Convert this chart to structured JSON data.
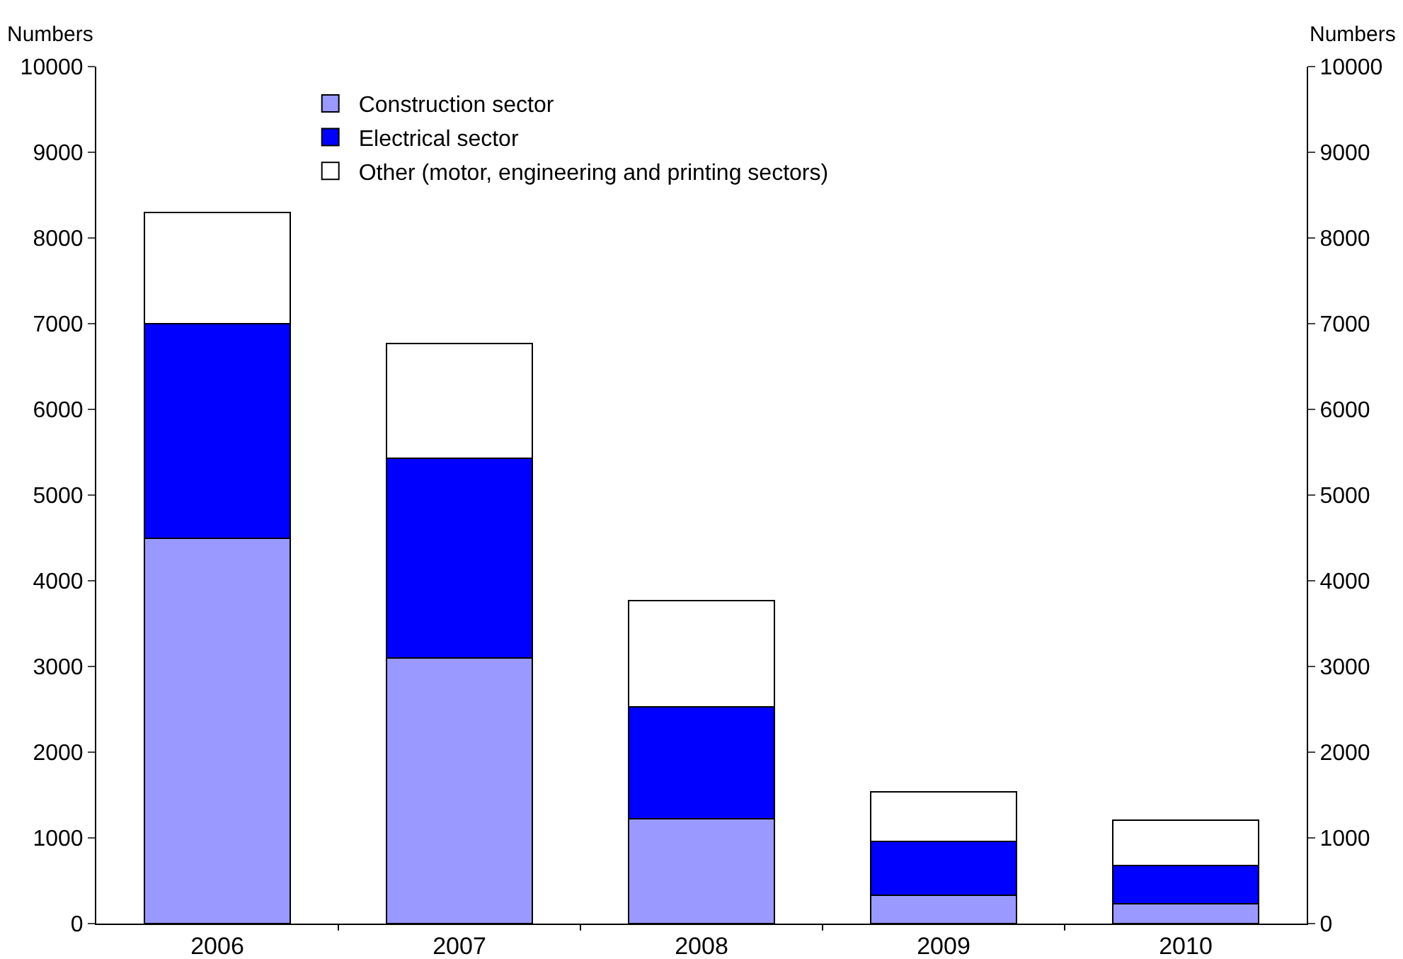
{
  "chart_data": {
    "type": "bar",
    "stacked": true,
    "ylabel": "Numbers",
    "y2label": "Numbers",
    "categories": [
      "2006",
      "2007",
      "2008",
      "2009",
      "2010"
    ],
    "series": [
      {
        "name": "Construction sector",
        "color": "#9999ff",
        "values": [
          4500,
          3100,
          1220,
          330,
          230
        ]
      },
      {
        "name": "Electrical sector",
        "color": "#0000ff",
        "values": [
          2500,
          2330,
          1310,
          630,
          450
        ]
      },
      {
        "name": "Other (motor, engineering and printing sectors)",
        "color": "#ffffff",
        "values": [
          1300,
          1340,
          1240,
          580,
          530
        ]
      }
    ],
    "ylim": [
      0,
      10000
    ],
    "yticks": [
      0,
      1000,
      2000,
      3000,
      4000,
      5000,
      6000,
      7000,
      8000,
      9000,
      10000
    ],
    "y2lim": [
      0,
      10000
    ],
    "y2ticks": [
      0,
      1000,
      2000,
      3000,
      4000,
      5000,
      6000,
      7000,
      8000,
      9000,
      10000
    ],
    "grid": false,
    "legend": "top left"
  }
}
